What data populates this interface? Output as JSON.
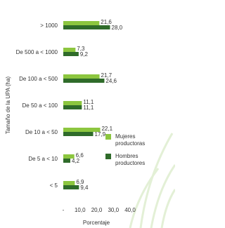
{
  "chart_data": {
    "type": "bar",
    "orientation": "horizontal",
    "y_label": "Tamaño de la UPA (ha)",
    "x_label": "Porcentaje",
    "categories": [
      "> 1000",
      "De 500 a < 1000",
      "De 100 a < 500",
      "De 50 a < 100",
      "De 10 a < 50",
      "De 5 a < 10",
      "< 5"
    ],
    "series": [
      {
        "name": "Mujeres productoras",
        "color": "#8cc63f",
        "values": [
          21.6,
          7.3,
          21.7,
          11.1,
          22.1,
          6.6,
          6.9
        ],
        "value_labels": [
          "21,6",
          "7,3",
          "21,7",
          "11,1",
          "22,1",
          "6,6",
          "6,9"
        ]
      },
      {
        "name": "Hombres productores",
        "color": "#2f6b2a",
        "values": [
          28.0,
          9.2,
          24.6,
          11.1,
          17.9,
          4.2,
          9.4
        ],
        "value_labels": [
          "28,0",
          "9,2",
          "24,6",
          "11,1",
          "17,9",
          "4,2",
          "9,4"
        ]
      }
    ],
    "xlim": [
      0,
      40
    ],
    "xticks": [
      {
        "value": 0,
        "label": "-"
      },
      {
        "value": 10,
        "label": "10,0"
      },
      {
        "value": 20,
        "label": "20,0"
      },
      {
        "value": 30,
        "label": "30,0"
      },
      {
        "value": 40,
        "label": "40,0"
      }
    ]
  }
}
